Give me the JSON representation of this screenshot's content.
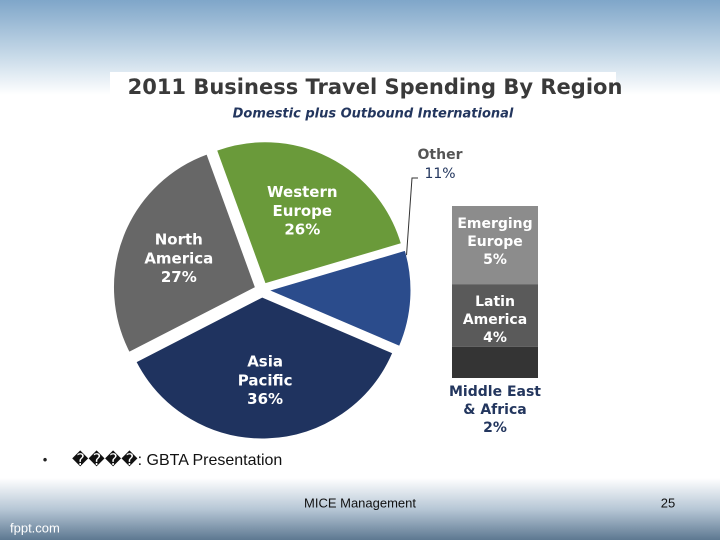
{
  "chart_data": [
    {
      "type": "pie",
      "title": "2011 Business Travel Spending By Region",
      "subtitle": "Domestic plus Outbound International",
      "categories": [
        "Western Europe",
        "Other",
        "Asia Pacific",
        "North America"
      ],
      "values": [
        26,
        11,
        36,
        27
      ],
      "value_labels": [
        "26%",
        "11%",
        "36%",
        "27%"
      ],
      "colors": [
        "#6a9a3a",
        "#2b4c8c",
        "#1f335f",
        "#676767"
      ]
    },
    {
      "type": "stacked-bar",
      "categories": [
        "Emerging Europe",
        "Latin America",
        "Middle East & Africa"
      ],
      "values": [
        5,
        4,
        2
      ],
      "value_labels": [
        "5%",
        "4%",
        "2%"
      ],
      "colors": [
        "#8c8c8c",
        "#5a5a5a",
        "#343434"
      ]
    }
  ],
  "slide": {
    "bullet": "•",
    "text": "����: GBTA Presentation",
    "footer": "MICE Management",
    "page_number": "25",
    "brand": "fppt.com"
  }
}
